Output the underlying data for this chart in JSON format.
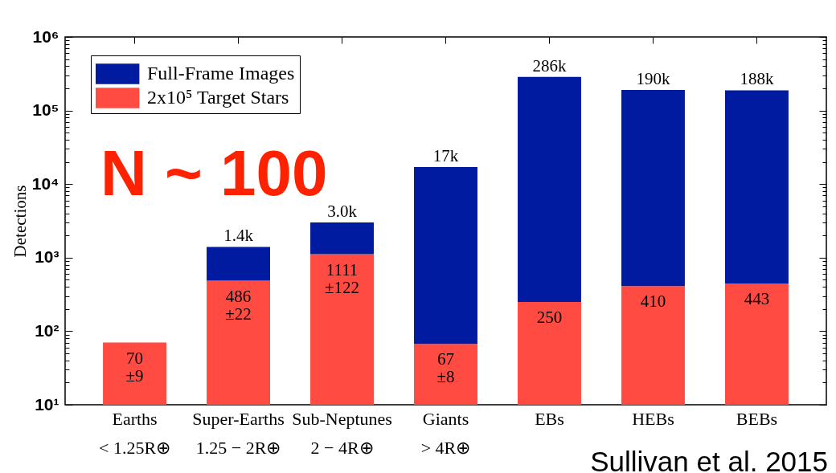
{
  "chart_data": {
    "type": "bar",
    "ylabel": "Detections",
    "categories": [
      "Earths\n< 1.25R⊕",
      "Super-Earths\n1.25 − 2R⊕",
      "Sub-Neptunes\n2 − 4R⊕",
      "Giants\n> 4R⊕",
      "EBs",
      "HEBs",
      "BEBs"
    ],
    "series": [
      {
        "name": "2x10⁵ Target Stars",
        "color": "#ff4b42",
        "values": [
          70,
          486,
          1111,
          67,
          250,
          410,
          443
        ],
        "value_labels": [
          "70\n±9",
          "486\n±22",
          "1111\n±122",
          "67\n±8",
          "250",
          "410",
          "443"
        ]
      },
      {
        "name": "Full-Frame Images",
        "color": "#001aa0",
        "values": [
          null,
          914,
          1889,
          16933,
          285750,
          189590,
          187557
        ]
      }
    ],
    "stacked": true,
    "totals": [
      null,
      "1.4k",
      "3.0k",
      "17k",
      "286k",
      "190k",
      "188k"
    ],
    "log": true,
    "ylim": [
      10,
      1000000
    ],
    "yticks": [
      {
        "value": 10,
        "label": "10¹"
      },
      {
        "value": 20,
        "label": null
      },
      {
        "value": 30,
        "label": null
      },
      {
        "value": 40,
        "label": null
      },
      {
        "value": 50,
        "label": null
      },
      {
        "value": 60,
        "label": null
      },
      {
        "value": 70,
        "label": null
      },
      {
        "value": 80,
        "label": null
      },
      {
        "value": 90,
        "label": null
      },
      {
        "value": 100,
        "label": "10²"
      },
      {
        "value": 200,
        "label": null
      },
      {
        "value": 300,
        "label": null
      },
      {
        "value": 400,
        "label": null
      },
      {
        "value": 500,
        "label": null
      },
      {
        "value": 600,
        "label": null
      },
      {
        "value": 700,
        "label": null
      },
      {
        "value": 800,
        "label": null
      },
      {
        "value": 900,
        "label": null
      },
      {
        "value": 1000,
        "label": "10³"
      },
      {
        "value": 2000,
        "label": null
      },
      {
        "value": 3000,
        "label": null
      },
      {
        "value": 4000,
        "label": null
      },
      {
        "value": 5000,
        "label": null
      },
      {
        "value": 6000,
        "label": null
      },
      {
        "value": 7000,
        "label": null
      },
      {
        "value": 8000,
        "label": null
      },
      {
        "value": 9000,
        "label": null
      },
      {
        "value": 10000,
        "label": "10⁴"
      },
      {
        "value": 20000,
        "label": null
      },
      {
        "value": 30000,
        "label": null
      },
      {
        "value": 40000,
        "label": null
      },
      {
        "value": 50000,
        "label": null
      },
      {
        "value": 60000,
        "label": null
      },
      {
        "value": 70000,
        "label": null
      },
      {
        "value": 80000,
        "label": null
      },
      {
        "value": 90000,
        "label": null
      },
      {
        "value": 100000,
        "label": "10⁵"
      },
      {
        "value": 200000,
        "label": null
      },
      {
        "value": 300000,
        "label": null
      },
      {
        "value": 400000,
        "label": null
      },
      {
        "value": 500000,
        "label": null
      },
      {
        "value": 600000,
        "label": null
      },
      {
        "value": 700000,
        "label": null
      },
      {
        "value": 800000,
        "label": null
      },
      {
        "value": 900000,
        "label": null
      },
      {
        "value": 1000000,
        "label": "10⁶"
      }
    ],
    "legend": "top left",
    "annotations": [
      "N ~ 100",
      "Sullivan et al. 2015"
    ]
  }
}
